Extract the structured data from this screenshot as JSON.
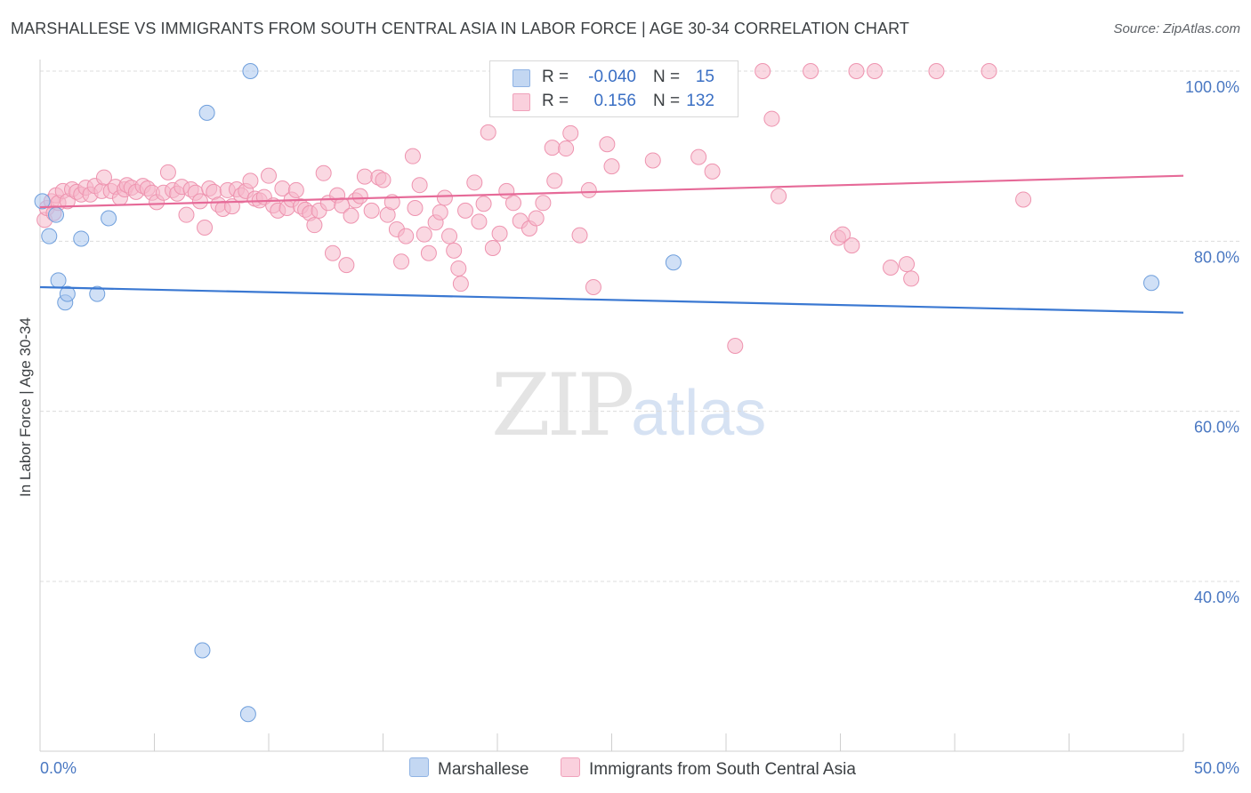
{
  "header": {
    "title": "MARSHALLESE VS IMMIGRANTS FROM SOUTH CENTRAL ASIA IN LABOR FORCE | AGE 30-34 CORRELATION CHART",
    "source": "Source: ZipAtlas.com"
  },
  "watermark": {
    "zip": "ZIP",
    "atlas": "atlas"
  },
  "legend_top": {
    "rows": [
      {
        "r_label": "R =",
        "r_value": "-0.040",
        "n_label": "N =",
        "n_value": "15",
        "color": "#a9c6ee"
      },
      {
        "r_label": "R =",
        "r_value": "0.156",
        "n_label": "N =",
        "n_value": "132",
        "color": "#f6b8cb"
      }
    ]
  },
  "legend_bottom": {
    "items": [
      {
        "label": "Marshallese",
        "color": "#a9c6ee"
      },
      {
        "label": "Immigrants from South Central Asia",
        "color": "#f6b8cb"
      }
    ]
  },
  "chart_data": {
    "type": "scatter",
    "ylabel": "In Labor Force | Age 30-34",
    "xlim": [
      0,
      50
    ],
    "ylim": [
      20,
      102
    ],
    "x_tick_labels": [
      {
        "value": 0,
        "label": "0.0%"
      },
      {
        "value": 50,
        "label": "50.0%"
      }
    ],
    "y_tick_labels": [
      {
        "value": 100,
        "label": "100.0%"
      },
      {
        "value": 80,
        "label": "80.0%"
      },
      {
        "value": 60,
        "label": "60.0%"
      },
      {
        "value": 40,
        "label": "40.0%"
      }
    ],
    "x_minor_ticks": [
      0,
      5,
      10,
      15,
      20,
      25,
      30,
      35,
      40,
      45,
      50
    ],
    "grid": true,
    "legend_position": "top-center",
    "series": [
      {
        "name": "Marshallese",
        "color": "#a9c6ee",
        "stroke": "#6f9fdc",
        "line_color": "#3a78d2",
        "trend": [
          [
            0,
            74.6
          ],
          [
            50,
            71.6
          ]
        ],
        "points": [
          [
            0.1,
            84.7
          ],
          [
            0.4,
            80.6
          ],
          [
            0.7,
            83.1
          ],
          [
            0.8,
            75.4
          ],
          [
            1.1,
            72.8
          ],
          [
            1.2,
            73.8
          ],
          [
            1.8,
            80.3
          ],
          [
            2.5,
            73.8
          ],
          [
            3.0,
            82.7
          ],
          [
            7.1,
            31.9
          ],
          [
            7.3,
            95.1
          ],
          [
            9.1,
            24.4
          ],
          [
            9.2,
            100.0
          ],
          [
            27.7,
            77.5
          ],
          [
            48.6,
            75.1
          ]
        ]
      },
      {
        "name": "Immigrants from South Central Asia",
        "color": "#f6b8cb",
        "stroke": "#ee93af",
        "line_color": "#e66a98",
        "trend": [
          [
            0,
            84.0
          ],
          [
            50,
            87.7
          ]
        ],
        "points": [
          [
            0.2,
            82.5
          ],
          [
            0.3,
            83.9
          ],
          [
            0.5,
            84.7
          ],
          [
            0.6,
            83.3
          ],
          [
            0.7,
            85.4
          ],
          [
            0.8,
            84.5
          ],
          [
            1.0,
            85.9
          ],
          [
            1.2,
            84.7
          ],
          [
            1.4,
            86.1
          ],
          [
            1.6,
            85.8
          ],
          [
            1.8,
            85.5
          ],
          [
            2.0,
            86.3
          ],
          [
            2.2,
            85.5
          ],
          [
            2.4,
            86.5
          ],
          [
            2.7,
            85.9
          ],
          [
            2.8,
            87.5
          ],
          [
            3.1,
            85.9
          ],
          [
            3.3,
            86.4
          ],
          [
            3.5,
            85.1
          ],
          [
            3.7,
            86.1
          ],
          [
            3.8,
            86.6
          ],
          [
            4.0,
            86.3
          ],
          [
            4.2,
            85.8
          ],
          [
            4.5,
            86.5
          ],
          [
            4.7,
            86.2
          ],
          [
            4.9,
            85.7
          ],
          [
            5.1,
            84.6
          ],
          [
            5.4,
            85.7
          ],
          [
            5.6,
            88.1
          ],
          [
            5.8,
            86.0
          ],
          [
            6.0,
            85.6
          ],
          [
            6.2,
            86.4
          ],
          [
            6.4,
            83.1
          ],
          [
            6.6,
            86.1
          ],
          [
            6.8,
            85.7
          ],
          [
            7.0,
            84.7
          ],
          [
            7.2,
            81.6
          ],
          [
            7.4,
            86.2
          ],
          [
            7.6,
            85.8
          ],
          [
            7.8,
            84.3
          ],
          [
            8.0,
            83.8
          ],
          [
            8.2,
            86.0
          ],
          [
            8.4,
            84.1
          ],
          [
            8.6,
            86.1
          ],
          [
            8.8,
            85.4
          ],
          [
            9.0,
            85.9
          ],
          [
            9.2,
            87.1
          ],
          [
            9.4,
            85.0
          ],
          [
            9.6,
            84.8
          ],
          [
            9.8,
            85.2
          ],
          [
            10.0,
            87.7
          ],
          [
            10.2,
            84.2
          ],
          [
            10.4,
            83.6
          ],
          [
            10.6,
            86.2
          ],
          [
            10.8,
            83.9
          ],
          [
            11.0,
            84.9
          ],
          [
            11.2,
            86.0
          ],
          [
            11.4,
            84.1
          ],
          [
            11.6,
            83.7
          ],
          [
            11.8,
            83.3
          ],
          [
            12.0,
            81.9
          ],
          [
            12.2,
            83.6
          ],
          [
            12.4,
            88.0
          ],
          [
            12.6,
            84.5
          ],
          [
            12.8,
            78.6
          ],
          [
            13.0,
            85.4
          ],
          [
            13.2,
            84.2
          ],
          [
            13.4,
            77.2
          ],
          [
            13.6,
            83.0
          ],
          [
            13.8,
            84.8
          ],
          [
            14.0,
            85.3
          ],
          [
            14.2,
            87.6
          ],
          [
            14.5,
            83.6
          ],
          [
            14.8,
            87.5
          ],
          [
            15.0,
            87.2
          ],
          [
            15.2,
            83.1
          ],
          [
            15.4,
            84.6
          ],
          [
            15.6,
            81.4
          ],
          [
            15.8,
            77.6
          ],
          [
            16.0,
            80.6
          ],
          [
            16.3,
            90.0
          ],
          [
            16.4,
            83.9
          ],
          [
            16.6,
            86.6
          ],
          [
            16.8,
            80.8
          ],
          [
            17.0,
            78.6
          ],
          [
            17.3,
            82.2
          ],
          [
            17.5,
            83.4
          ],
          [
            17.7,
            85.1
          ],
          [
            17.9,
            80.6
          ],
          [
            18.1,
            78.9
          ],
          [
            18.3,
            76.8
          ],
          [
            18.4,
            75.0
          ],
          [
            18.6,
            83.6
          ],
          [
            19.0,
            86.9
          ],
          [
            19.2,
            82.3
          ],
          [
            19.4,
            84.4
          ],
          [
            19.6,
            92.8
          ],
          [
            19.8,
            79.2
          ],
          [
            20.1,
            80.9
          ],
          [
            20.4,
            85.9
          ],
          [
            20.7,
            84.5
          ],
          [
            21.0,
            82.4
          ],
          [
            21.4,
            81.5
          ],
          [
            21.7,
            82.7
          ],
          [
            22.0,
            84.5
          ],
          [
            22.4,
            91.0
          ],
          [
            22.5,
            87.1
          ],
          [
            23.0,
            90.9
          ],
          [
            23.2,
            92.7
          ],
          [
            23.6,
            80.7
          ],
          [
            24.0,
            86.0
          ],
          [
            24.2,
            74.6
          ],
          [
            24.8,
            91.4
          ],
          [
            25.0,
            88.8
          ],
          [
            26.8,
            89.5
          ],
          [
            28.8,
            89.9
          ],
          [
            29.4,
            88.2
          ],
          [
            30.4,
            67.7
          ],
          [
            31.6,
            100.0
          ],
          [
            32.0,
            94.4
          ],
          [
            32.3,
            85.3
          ],
          [
            33.7,
            100.0
          ],
          [
            34.9,
            80.4
          ],
          [
            35.1,
            80.8
          ],
          [
            35.5,
            79.5
          ],
          [
            35.7,
            100.0
          ],
          [
            36.5,
            100.0
          ],
          [
            37.2,
            76.9
          ],
          [
            37.9,
            77.3
          ],
          [
            38.1,
            75.6
          ],
          [
            39.2,
            100.0
          ],
          [
            41.5,
            100.0
          ],
          [
            43.0,
            84.9
          ],
          [
            29.3,
            97.5
          ]
        ]
      }
    ]
  }
}
